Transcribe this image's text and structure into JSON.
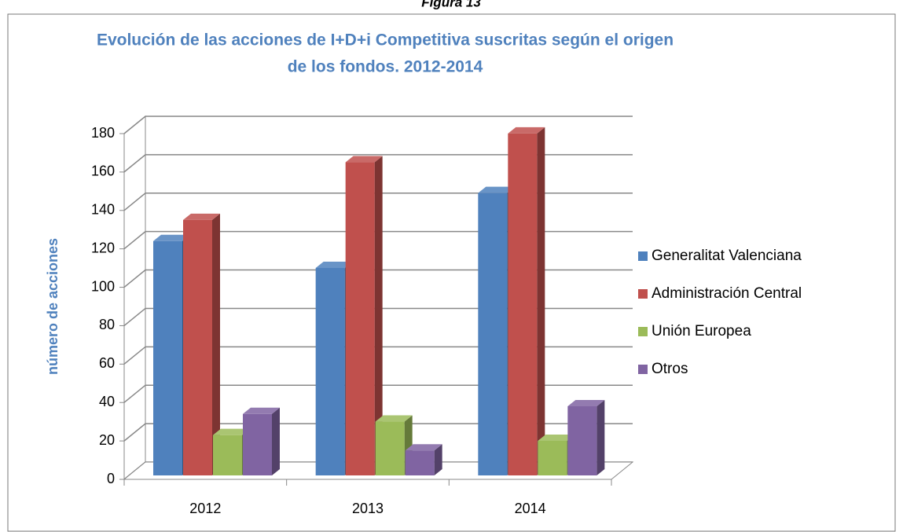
{
  "caption": "Figura 13",
  "chart_data": {
    "type": "bar3d",
    "title": [
      "Evolución de las acciones de I+D+i Competitiva suscritas según el origen",
      "de los fondos. 2012-2014"
    ],
    "ylabel": "número de acciones",
    "categories": [
      "2012",
      "2013",
      "2014"
    ],
    "series": [
      {
        "name": "Generalitat Valenciana",
        "color": "#4f81bd",
        "values": [
          122,
          108,
          147
        ]
      },
      {
        "name": "Administración Central",
        "color": "#c0504d",
        "values": [
          133,
          163,
          178
        ]
      },
      {
        "name": "Unión Europea",
        "color": "#9bbb59",
        "values": [
          21,
          28,
          18
        ]
      },
      {
        "name": "Otros",
        "color": "#8064a2",
        "values": [
          32,
          13,
          36
        ]
      }
    ],
    "ylim": [
      0,
      180
    ],
    "yticks": [
      0,
      20,
      40,
      60,
      80,
      100,
      120,
      140,
      160,
      180
    ],
    "grid": true,
    "legend": "right"
  }
}
